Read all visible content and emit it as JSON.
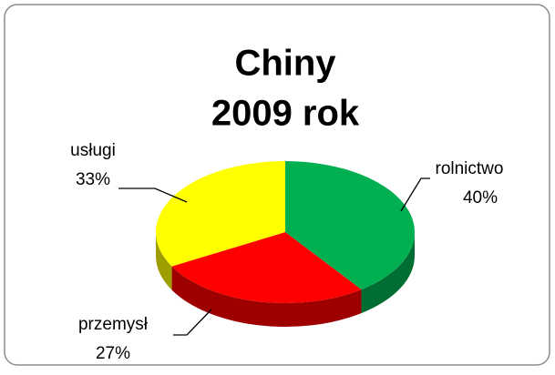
{
  "chart_data": {
    "type": "pie3d",
    "title": [
      "Chiny",
      "2009 rok"
    ],
    "categories": [
      "rolnictwo",
      "przemysł",
      "usługi"
    ],
    "values": [
      40,
      27,
      33
    ],
    "value_labels": [
      "40%",
      "27%",
      "33%"
    ],
    "colors": [
      "#00b050",
      "#ff0000",
      "#ffff00"
    ]
  }
}
